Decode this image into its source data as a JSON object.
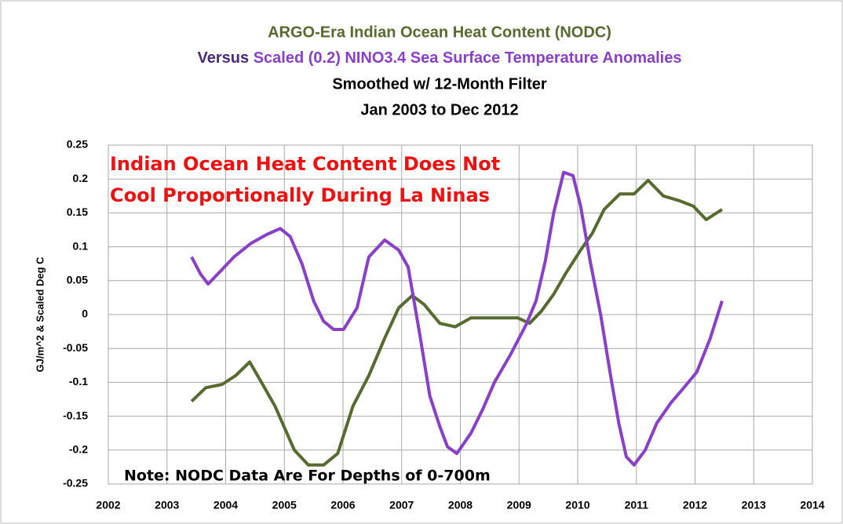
{
  "chart_data": {
    "type": "line",
    "title": "ARGO-Era Indian Ocean Heat Content (NODC)",
    "subtitle_prefix": "Versus",
    "subtitle": "Scaled (0.2) NINO3.4 Sea Surface Temperature Anomalies",
    "subtitle_lines": [
      "Smoothed w/ 12-Month Filter",
      "Jan 2003 to Dec 2012"
    ],
    "ylabel": "GJ/m^2 & Scaled Deg C",
    "annotations": [
      "Indian Ocean Heat Content Does Not",
      "Cool Proportionally During La Ninas",
      "Note: NODC Data Are For Depths of 0-700m"
    ],
    "xlim": [
      2002,
      2014
    ],
    "xticks": [
      2002,
      2003,
      2004,
      2005,
      2006,
      2007,
      2008,
      2009,
      2010,
      2011,
      2012,
      2013,
      2014
    ],
    "ylim": [
      -0.25,
      0.25
    ],
    "yticks": [
      0.25,
      0.2,
      0.15,
      0.1,
      0.05,
      0,
      -0.05,
      -0.1,
      -0.15,
      -0.2,
      -0.25
    ],
    "grid": true,
    "series": [
      {
        "color": "#556b2f",
        "x": [
          2003.42,
          2003.66,
          2003.94,
          2004.17,
          2004.41,
          2004.61,
          2004.84,
          2005.17,
          2005.41,
          2005.67,
          2005.91,
          2006.17,
          2006.44,
          2006.71,
          2006.95,
          2007.18,
          2007.38,
          2007.65,
          2007.91,
          2008.18,
          2008.58,
          2008.98,
          2009.18,
          2009.38,
          2009.59,
          2009.79,
          2010.05,
          2010.25,
          2010.45,
          2010.72,
          2010.96,
          2011.2,
          2011.46,
          2011.73,
          2011.97,
          2012.19,
          2012.46
        ],
        "values": [
          -0.128,
          -0.108,
          -0.103,
          -0.09,
          -0.07,
          -0.1,
          -0.135,
          -0.2,
          -0.222,
          -0.222,
          -0.205,
          -0.135,
          -0.09,
          -0.035,
          0.01,
          0.028,
          0.015,
          -0.013,
          -0.018,
          -0.005,
          -0.005,
          -0.005,
          -0.013,
          0.005,
          0.03,
          0.06,
          0.095,
          0.12,
          0.155,
          0.178,
          0.178,
          0.198,
          0.175,
          0.168,
          0.16,
          0.14,
          0.155
        ]
      },
      {
        "color": "#8a3fc8",
        "x": [
          2003.42,
          2003.57,
          2003.7,
          2003.9,
          2004.14,
          2004.43,
          2004.7,
          2004.93,
          2005.1,
          2005.3,
          2005.5,
          2005.67,
          2005.84,
          2006.01,
          2006.24,
          2006.44,
          2006.71,
          2006.95,
          2007.11,
          2007.31,
          2007.48,
          2007.65,
          2007.78,
          2007.94,
          2008.18,
          2008.38,
          2008.58,
          2008.85,
          2009.12,
          2009.29,
          2009.45,
          2009.59,
          2009.76,
          2009.92,
          2010.05,
          2010.21,
          2010.39,
          2010.56,
          2010.7,
          2010.83,
          2010.96,
          2011.15,
          2011.35,
          2011.59,
          2011.79,
          2012.03,
          2012.26,
          2012.46
        ],
        "values": [
          0.085,
          0.06,
          0.045,
          0.063,
          0.085,
          0.105,
          0.118,
          0.127,
          0.115,
          0.075,
          0.02,
          -0.01,
          -0.022,
          -0.022,
          0.01,
          0.085,
          0.11,
          0.095,
          0.07,
          -0.03,
          -0.12,
          -0.165,
          -0.195,
          -0.205,
          -0.175,
          -0.14,
          -0.1,
          -0.06,
          -0.015,
          0.02,
          0.08,
          0.15,
          0.21,
          0.205,
          0.16,
          0.08,
          0.0,
          -0.09,
          -0.16,
          -0.21,
          -0.222,
          -0.2,
          -0.16,
          -0.13,
          -0.11,
          -0.085,
          -0.035,
          0.02
        ]
      }
    ]
  }
}
